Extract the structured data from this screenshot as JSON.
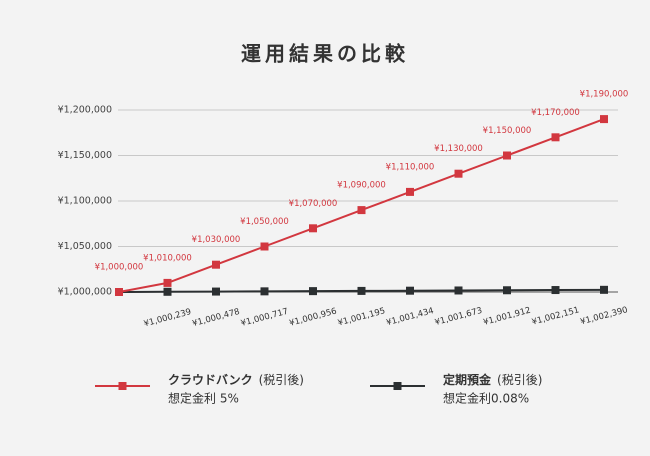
{
  "chart_data": {
    "type": "line",
    "title": "運用結果の比較",
    "series": [
      {
        "name": "クラウドバンク",
        "name_note": "(税引後)",
        "rate_label": "想定金利 5%",
        "color": "#d2373f",
        "values": [
          1000000,
          1010000,
          1030000,
          1050000,
          1070000,
          1090000,
          1110000,
          1130000,
          1150000,
          1170000,
          1190000
        ],
        "value_labels": [
          "¥1,000,000",
          "¥1,010,000",
          "¥1,030,000",
          "¥1,050,000",
          "¥1,070,000",
          "¥1,090,000",
          "¥1,110,000",
          "¥1,130,000",
          "¥1,150,000",
          "¥1,170,000",
          "¥1,190,000"
        ]
      },
      {
        "name": "定期預金",
        "name_note": "(税引後)",
        "rate_label": "想定金利0.08%",
        "color": "#2b2f31",
        "values": [
          1000000,
          1000239,
          1000478,
          1000717,
          1000956,
          1001195,
          1001434,
          1001673,
          1001912,
          1002151,
          1002390
        ],
        "value_labels": [
          null,
          "¥1,000,239",
          "¥1,000,478",
          "¥1,000,717",
          "¥1,000,956",
          "¥1,001,195",
          "¥1,001,434",
          "¥1,001,673",
          "¥1,001,912",
          "¥1,002,151",
          "¥1,002,390"
        ]
      }
    ],
    "ylim": [
      1000000,
      1200000
    ],
    "yticks": [
      {
        "value": 1000000,
        "label": "¥1,000,000"
      },
      {
        "value": 1050000,
        "label": "¥1,050,000"
      },
      {
        "value": 1100000,
        "label": "¥1,100,000"
      },
      {
        "value": 1150000,
        "label": "¥1,150,000"
      },
      {
        "value": 1200000,
        "label": "¥1,200,000"
      }
    ],
    "grid": true
  }
}
